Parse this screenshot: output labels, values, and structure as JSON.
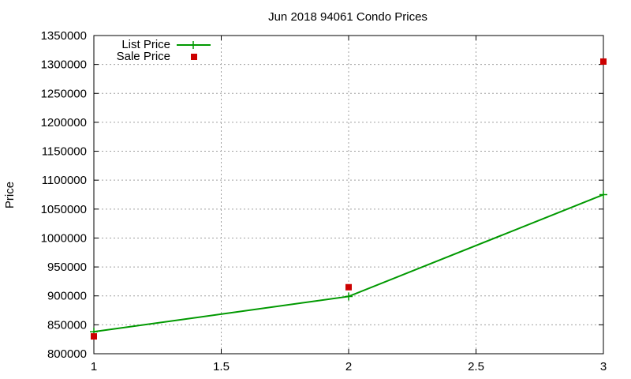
{
  "chart_data": {
    "type": "line",
    "title": "Jun 2018 94061 Condo Prices",
    "xlabel": "",
    "ylabel": "Price",
    "xlim": [
      1,
      3
    ],
    "ylim": [
      800000,
      1350000
    ],
    "x_ticks": [
      "1",
      "1.5",
      "2",
      "2.5",
      "3"
    ],
    "y_ticks": [
      "800000",
      "850000",
      "900000",
      "950000",
      "1000000",
      "1050000",
      "1100000",
      "1150000",
      "1200000",
      "1250000",
      "1300000",
      "1350000"
    ],
    "grid": true,
    "legend_position": "top-left",
    "series": [
      {
        "name": "List Price",
        "style": "line-plus",
        "color": "#009900",
        "x": [
          1,
          2,
          3
        ],
        "y": [
          838000,
          899000,
          1075000
        ]
      },
      {
        "name": "Sale Price",
        "style": "square-points",
        "color": "#cc0000",
        "x": [
          1,
          2,
          3
        ],
        "y": [
          830000,
          915000,
          1305000
        ]
      }
    ]
  }
}
